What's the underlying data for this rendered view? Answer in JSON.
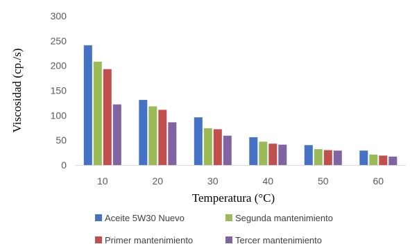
{
  "chart_data": {
    "type": "bar",
    "title": "",
    "xlabel": "Temperatura (°C)",
    "ylabel": "Viscosidad (cp./s)",
    "ylim": [
      0,
      300
    ],
    "yticks": [
      0,
      50,
      100,
      150,
      200,
      250,
      300
    ],
    "grid": false,
    "legend_position": "bottom",
    "categories": [
      "10",
      "20",
      "30",
      "40",
      "50",
      "60"
    ],
    "series": [
      {
        "name": "Aceite 5W30 Nuevo",
        "color": "#4472C4",
        "values": [
          241,
          131,
          96,
          56,
          40,
          29
        ]
      },
      {
        "name": "Segunda mantenimiento",
        "color": "#9BBB59",
        "values": [
          208,
          118,
          74,
          47,
          32,
          21
        ]
      },
      {
        "name": "Primer mantenimiento",
        "color": "#C0504D",
        "values": [
          193,
          111,
          72,
          43,
          30,
          19
        ]
      },
      {
        "name": "Tercer mantenimiento",
        "color": "#8064A2",
        "values": [
          122,
          86,
          59,
          41,
          29,
          17
        ]
      }
    ]
  }
}
